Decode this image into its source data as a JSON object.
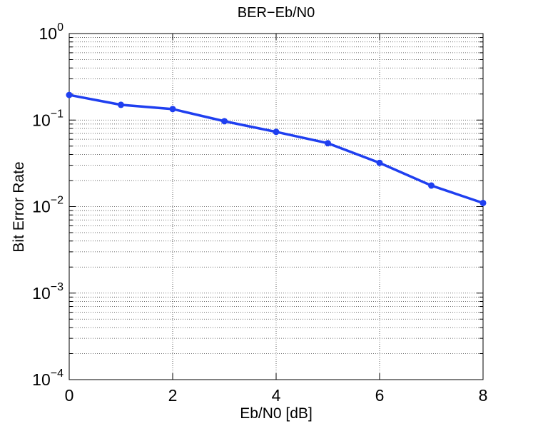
{
  "chart_data": {
    "type": "line",
    "title": "BER−Eb/N0",
    "xlabel": "Eb/N0 [dB]",
    "ylabel": "Bit Error Rate",
    "x": [
      0,
      1,
      2,
      3,
      4,
      5,
      6,
      7,
      8
    ],
    "series": [
      {
        "name": "BER",
        "color": "#1f3ff0",
        "values": [
          0.195,
          0.15,
          0.134,
          0.097,
          0.073,
          0.054,
          0.032,
          0.0175,
          0.011
        ]
      }
    ],
    "xlim": [
      0,
      8
    ],
    "xticks": [
      0,
      2,
      4,
      6,
      8
    ],
    "ylim": [
      0.0001,
      1
    ],
    "yscale": "log",
    "yticks": [
      {
        "value": 0.0001,
        "label": "10^-4"
      },
      {
        "value": 0.001,
        "label": "10^-3"
      },
      {
        "value": 0.01,
        "label": "10^-2"
      },
      {
        "value": 0.1,
        "label": "10^-1"
      },
      {
        "value": 1,
        "label": "10^0"
      }
    ],
    "grid": true,
    "minor_grid": true,
    "markers": true
  }
}
